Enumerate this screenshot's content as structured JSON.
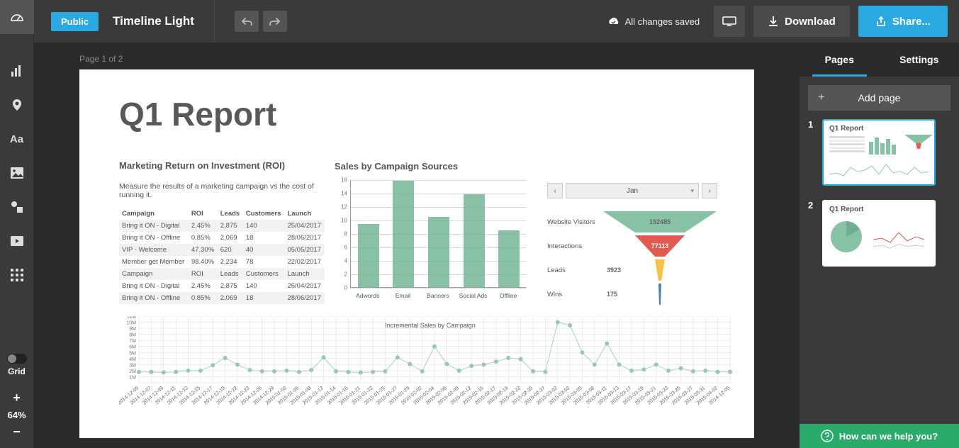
{
  "topbar": {
    "public_label": "Public",
    "title": "Timeline Light",
    "save_status": "All changes saved",
    "download_label": "Download",
    "share_label": "Share..."
  },
  "left_tools": [
    "dashboard",
    "chart",
    "map",
    "text",
    "image",
    "shapes",
    "video",
    "grid-icon"
  ],
  "grid_label": "Grid",
  "zoom": {
    "level": "64%"
  },
  "page_indicator": "Page 1 of 2",
  "doc": {
    "title": "Q1 Report",
    "roi": {
      "heading": "Marketing Return on Investment (ROI)",
      "sub": "Measure the results of a marketing campaign vs the cost of running it.",
      "columns": [
        "Campaign",
        "ROI",
        "Leads",
        "Customers",
        "Launch"
      ],
      "rows": [
        [
          "Bring it ON - Digital",
          "2.45%",
          "2,875",
          "140",
          "25/04/2017"
        ],
        [
          "Bring it ON - Offline",
          "0.85%",
          "2,069",
          "18",
          "28/06/2017"
        ],
        [
          "VIP - Welcome",
          "47.30%",
          "620",
          "40",
          "05/05/2017"
        ],
        [
          "Member get Member",
          "98.40%",
          "2,234",
          "78",
          "22/02/2017"
        ],
        [
          "Campaign",
          "ROI",
          "Leads",
          "Customers",
          "Launch"
        ],
        [
          "Bring it ON - Digital",
          "2.45%",
          "2,875",
          "140",
          "25/04/2017"
        ],
        [
          "Bring it ON - Offline",
          "0.85%",
          "2,069",
          "18",
          "28/06/2017"
        ]
      ]
    },
    "bar": {
      "heading": "Sales by Campaign Sources",
      "type": "bar",
      "categories": [
        "Adwords",
        "Email",
        "Banners",
        "Social Ads",
        "Offline"
      ],
      "values": [
        9.4,
        15.8,
        10.4,
        13.8,
        8.4
      ],
      "bar_color": "#87c2a6",
      "ylim": [
        0,
        16
      ],
      "ytick_step": 2,
      "grid_color": "#cccccc",
      "xaxis_title": "Incremental Sales by Campaign",
      "label_fontsize": 9
    },
    "month_selector": {
      "value": "Jan"
    },
    "funnel": {
      "rows": [
        {
          "label": "Website Visitors",
          "value": "152485",
          "color": "#87c2a6",
          "width": 160,
          "text_white": false
        },
        {
          "label": "Interactions",
          "value": "77113",
          "color": "#e15b4e",
          "width": 70,
          "text_white": true
        },
        {
          "label": "Leads",
          "value": "3923",
          "color": "#f6c24a",
          "width": 14,
          "text_white": false
        },
        {
          "label": "Wins",
          "value": "175",
          "color": "#4a7fc1",
          "width": 4,
          "text_white": false
        }
      ]
    },
    "line": {
      "type": "line_scatter",
      "ylabels": [
        "1M",
        "2M",
        "3M",
        "4M",
        "5M",
        "6M",
        "7M",
        "8M",
        "9M",
        "10M",
        "11M"
      ],
      "ymax": 11,
      "xdates": [
        "2014-12-05",
        "2014-12-07",
        "2014-12-09",
        "2014-12-11",
        "2014-12-13",
        "2014-12-15",
        "2014-12-17",
        "2014-12-19",
        "2014-12-22",
        "2014-12-23",
        "2014-12-26",
        "2014-12-29",
        "2015-01-03",
        "2015-01-06",
        "2015-01-08",
        "2015-01-12",
        "2015-01-14",
        "2015-01-16",
        "2015-01-21",
        "2015-01-23",
        "2015-01-25",
        "2015-01-27",
        "2015-01-29",
        "2015-02-02",
        "2015-02-04",
        "2015-02-06",
        "2015-02-09",
        "2015-02-12",
        "2015-02-15",
        "2015-02-17",
        "2015-02-19",
        "2015-02-23",
        "2015-02-25",
        "2015-02-27",
        "2015-03-02",
        "2015-03-03",
        "2015-03-05",
        "2015-03-08",
        "2015-03-11",
        "2015-03-13",
        "2015-03-17",
        "2015-03-19",
        "2015-03-21",
        "2015-03-23",
        "2015-03-25",
        "2015-03-27",
        "2015-03-31",
        "2015-04-02",
        "2014-12-05"
      ],
      "values": [
        1.8,
        1.8,
        1.7,
        1.8,
        2.0,
        2.0,
        2.9,
        4.1,
        3.0,
        2.1,
        1.9,
        1.9,
        2.0,
        1.8,
        2.1,
        4.2,
        1.9,
        1.8,
        1.7,
        1.8,
        1.9,
        4.2,
        3.1,
        1.9,
        6.0,
        3.1,
        2.0,
        2.8,
        3.0,
        3.5,
        4.1,
        3.9,
        1.9,
        1.8,
        10.0,
        9.5,
        5.0,
        3.0,
        6.5,
        3.0,
        2.0,
        2.2,
        3.0,
        2.0,
        2.4,
        1.9,
        2.0,
        1.8,
        1.8
      ],
      "marker_color": "#97c9ad",
      "line_color": "#b8d8c4",
      "grid_color": "#dddddd"
    }
  },
  "right": {
    "tabs": [
      "Pages",
      "Settings"
    ],
    "add_page": "Add page",
    "pages": [
      {
        "num": "1",
        "title": "Q1 Report",
        "active": true
      },
      {
        "num": "2",
        "title": "Q1 Report",
        "active": false
      }
    ]
  },
  "help": "How can we help you?"
}
